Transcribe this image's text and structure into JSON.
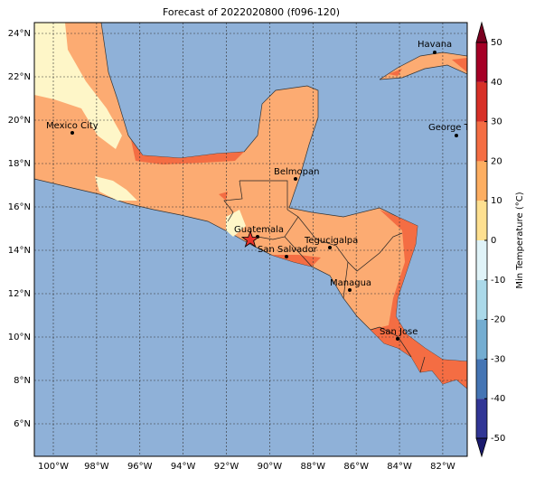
{
  "map": {
    "title": "Forecast of 2022020800 (f096-120)",
    "lat_ticks": [
      {
        "value": 24,
        "label": "24°N"
      },
      {
        "value": 22,
        "label": "22°N"
      },
      {
        "value": 20,
        "label": "20°N"
      },
      {
        "value": 18,
        "label": "18°N"
      },
      {
        "value": 16,
        "label": "16°N"
      },
      {
        "value": 14,
        "label": "14°N"
      },
      {
        "value": 12,
        "label": "12°N"
      },
      {
        "value": 10,
        "label": "10°N"
      },
      {
        "value": 8,
        "label": "8°N"
      },
      {
        "value": 6,
        "label": "6°N"
      }
    ],
    "lon_ticks": [
      {
        "value": -100,
        "label": "100°W"
      },
      {
        "value": -98,
        "label": "98°W"
      },
      {
        "value": -96,
        "label": "96°W"
      },
      {
        "value": -94,
        "label": "94°W"
      },
      {
        "value": -92,
        "label": "92°W"
      },
      {
        "value": -90,
        "label": "90°W"
      },
      {
        "value": -88,
        "label": "88°W"
      },
      {
        "value": -86,
        "label": "86°W"
      },
      {
        "value": -84,
        "label": "84°W"
      },
      {
        "value": -82,
        "label": "82°W"
      }
    ],
    "cities": [
      "Havana",
      "Mexico City",
      "George Town",
      "Belmopan",
      "Guatemala",
      "Tegucigalpa",
      "San Salvador",
      "Managua",
      "San Jose"
    ],
    "colorbar": {
      "label": "Min Temperature (°C)",
      "ticks": [
        -50,
        -40,
        -30,
        -20,
        -10,
        0,
        10,
        20,
        30,
        40,
        50
      ],
      "colors": [
        "#313695",
        "#4575b4",
        "#74add1",
        "#abd9e9",
        "#e0f3f8",
        "#fee090",
        "#fdae61",
        "#f46d43",
        "#d73027",
        "#a50026"
      ],
      "under_color": "#1a1a6e",
      "over_color": "#7a0020"
    }
  }
}
